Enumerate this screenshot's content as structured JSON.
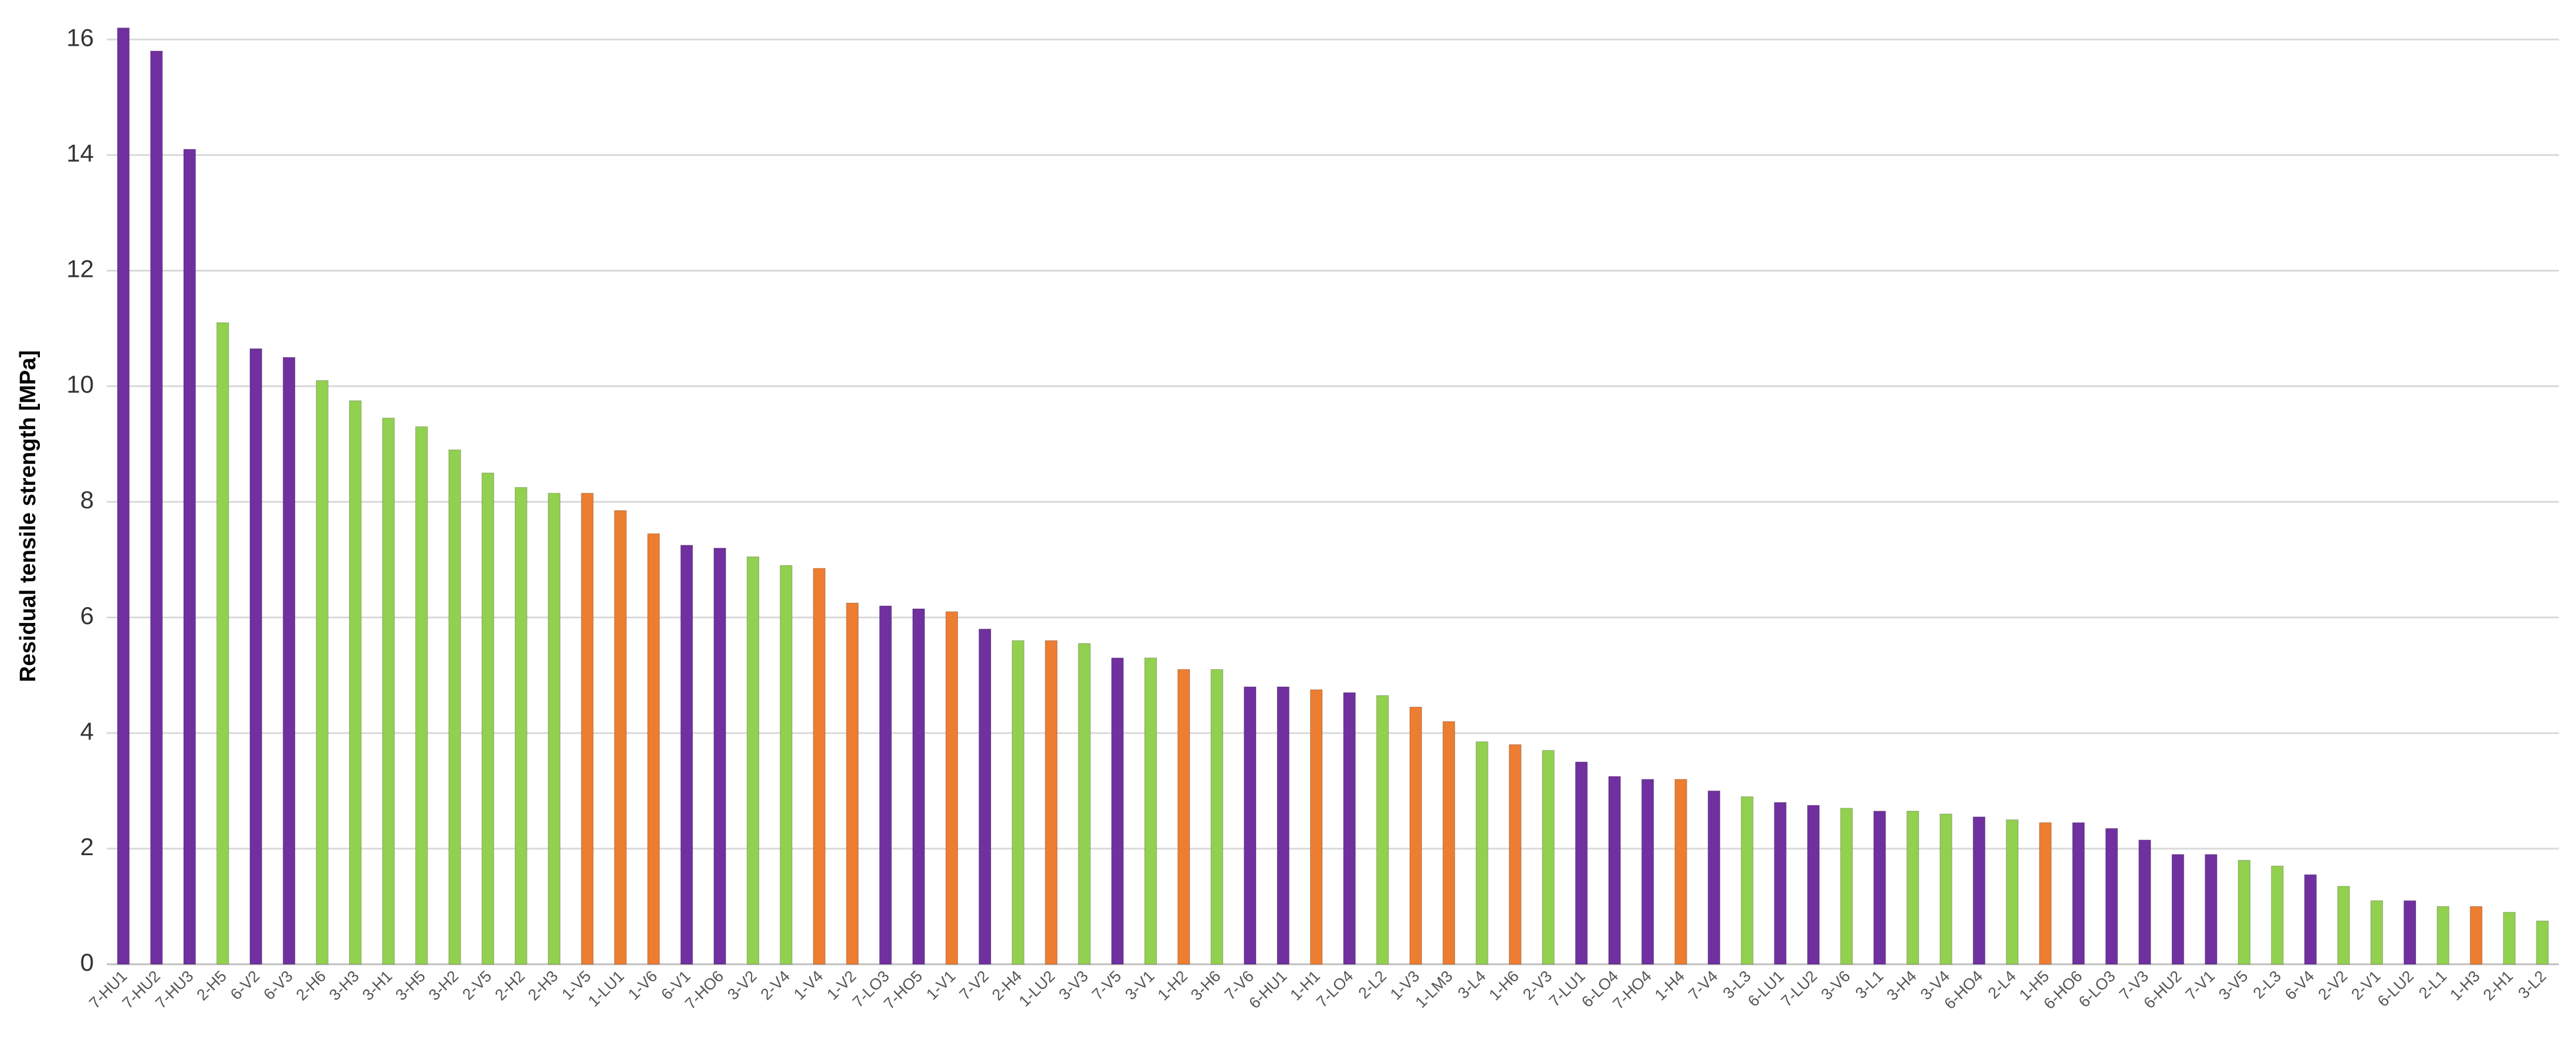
{
  "chart_data": {
    "type": "bar",
    "y_label": "Residual tensile strength [MPa]",
    "categories": [
      "7-HU1",
      "7-HU2",
      "7-HU3",
      "2-H5",
      "6-V2",
      "6-V3",
      "2-H6",
      "3-H3",
      "3-H1",
      "3-H5",
      "3-H2",
      "2-V5",
      "2-H2",
      "2-H3",
      "1-V5",
      "1-LU1",
      "1-V6",
      "6-V1",
      "7-HO6",
      "3-V2",
      "2-V4",
      "1-V4",
      "1-V2",
      "7-LO3",
      "7-HO5",
      "1-V1",
      "7-V2",
      "2-H4",
      "1-LU2",
      "3-V3",
      "7-V5",
      "3-V1",
      "1-H2",
      "3-H6",
      "7-V6",
      "6-HU1",
      "1-H1",
      "7-LO4",
      "2-L2",
      "1-V3",
      "1-LM3",
      "3-L4",
      "1-H6",
      "2-V3",
      "7-LU1",
      "6-LO4",
      "7-HO4",
      "1-H4",
      "7-V4",
      "3-L3",
      "6-LU1",
      "7-LU2",
      "3-V6",
      "3-L1",
      "3-H4",
      "3-V4",
      "6-HO4",
      "2-L4",
      "1-H5",
      "6-HO6",
      "6-LO3",
      "7-V3",
      "6-HU2",
      "7-V1",
      "3-V5",
      "2-L3",
      "6-V4",
      "2-V2",
      "2-V1",
      "6-LU2",
      "2-L1",
      "1-H3",
      "2-H1",
      "3-L2"
    ],
    "values": [
      16.2,
      15.8,
      14.1,
      11.1,
      10.65,
      10.5,
      10.1,
      9.75,
      9.45,
      9.3,
      8.9,
      8.5,
      8.25,
      8.15,
      8.15,
      7.85,
      7.45,
      7.25,
      7.2,
      7.05,
      6.9,
      6.85,
      6.25,
      6.2,
      6.15,
      6.1,
      5.8,
      5.6,
      5.6,
      5.55,
      5.3,
      5.3,
      5.1,
      5.1,
      4.8,
      4.8,
      4.75,
      4.7,
      4.65,
      4.45,
      4.2,
      3.85,
      3.8,
      3.7,
      3.5,
      3.25,
      3.2,
      3.2,
      3.0,
      2.9,
      2.8,
      2.75,
      2.7,
      2.65,
      2.65,
      2.6,
      2.55,
      2.5,
      2.45,
      2.45,
      2.35,
      2.15,
      1.9,
      1.9,
      1.8,
      1.7,
      1.55,
      1.35,
      1.1,
      1.1,
      1.0,
      1.0,
      0.9,
      0.75
    ],
    "colors": [
      "#7030a0",
      "#7030a0",
      "#7030a0",
      "#92d050",
      "#7030a0",
      "#7030a0",
      "#92d050",
      "#92d050",
      "#92d050",
      "#92d050",
      "#92d050",
      "#92d050",
      "#92d050",
      "#92d050",
      "#ed7d31",
      "#ed7d31",
      "#ed7d31",
      "#7030a0",
      "#7030a0",
      "#92d050",
      "#92d050",
      "#ed7d31",
      "#ed7d31",
      "#7030a0",
      "#7030a0",
      "#ed7d31",
      "#7030a0",
      "#92d050",
      "#ed7d31",
      "#92d050",
      "#7030a0",
      "#92d050",
      "#ed7d31",
      "#92d050",
      "#7030a0",
      "#7030a0",
      "#ed7d31",
      "#7030a0",
      "#92d050",
      "#ed7d31",
      "#ed7d31",
      "#92d050",
      "#ed7d31",
      "#92d050",
      "#7030a0",
      "#7030a0",
      "#7030a0",
      "#ed7d31",
      "#7030a0",
      "#92d050",
      "#7030a0",
      "#7030a0",
      "#92d050",
      "#7030a0",
      "#92d050",
      "#92d050",
      "#7030a0",
      "#92d050",
      "#ed7d31",
      "#7030a0",
      "#7030a0",
      "#7030a0",
      "#7030a0",
      "#7030a0",
      "#92d050",
      "#92d050",
      "#7030a0",
      "#92d050",
      "#92d050",
      "#7030a0",
      "#92d050",
      "#ed7d31",
      "#92d050",
      "#92d050"
    ],
    "ylim": [
      0,
      16.5
    ],
    "yticks": [
      0,
      2,
      4,
      6,
      8,
      10,
      12,
      14,
      16
    ],
    "grid": true
  }
}
